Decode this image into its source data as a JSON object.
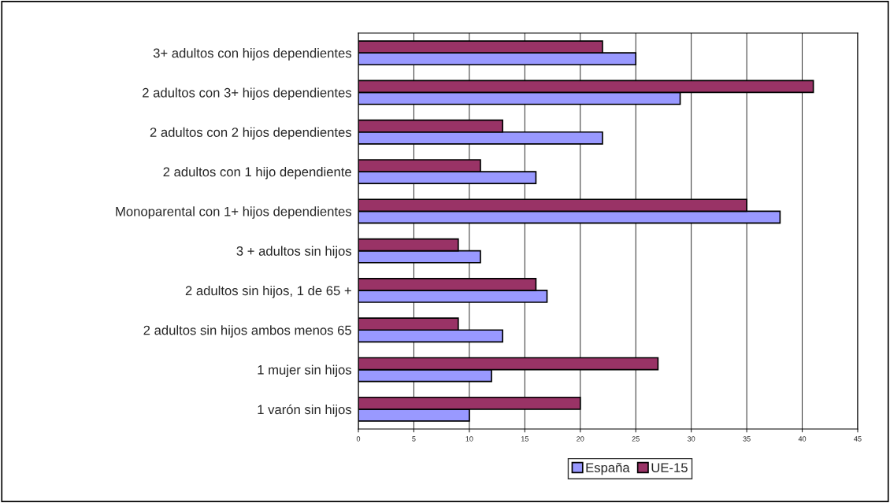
{
  "chart_data": {
    "type": "bar",
    "orientation": "horizontal",
    "categories": [
      "3+ adultos con hijos dependientes",
      "2 adultos con 3+ hijos dependientes",
      "2 adultos con 2 hijos dependientes",
      "2 adultos con 1 hijo dependiente",
      "Monoparental con 1+ hijos dependientes",
      "3 + adultos sin hijos",
      "2 adultos sin hijos, 1 de 65 +",
      "2 adultos sin hijos ambos menos 65",
      "1 mujer sin hijos",
      "1 varón sin hijos"
    ],
    "series": [
      {
        "name": "España",
        "color": "#9999ff",
        "values": [
          25,
          29,
          22,
          16,
          38,
          11,
          17,
          13,
          12,
          10
        ]
      },
      {
        "name": "UE-15",
        "color": "#993366",
        "values": [
          22,
          41,
          13,
          11,
          35,
          9,
          16,
          9,
          27,
          20
        ]
      }
    ],
    "xlim": [
      0,
      45
    ],
    "xticks": [
      0,
      5,
      10,
      15,
      20,
      25,
      30,
      35,
      40,
      45
    ],
    "grid": "x",
    "legend": "bottom"
  }
}
